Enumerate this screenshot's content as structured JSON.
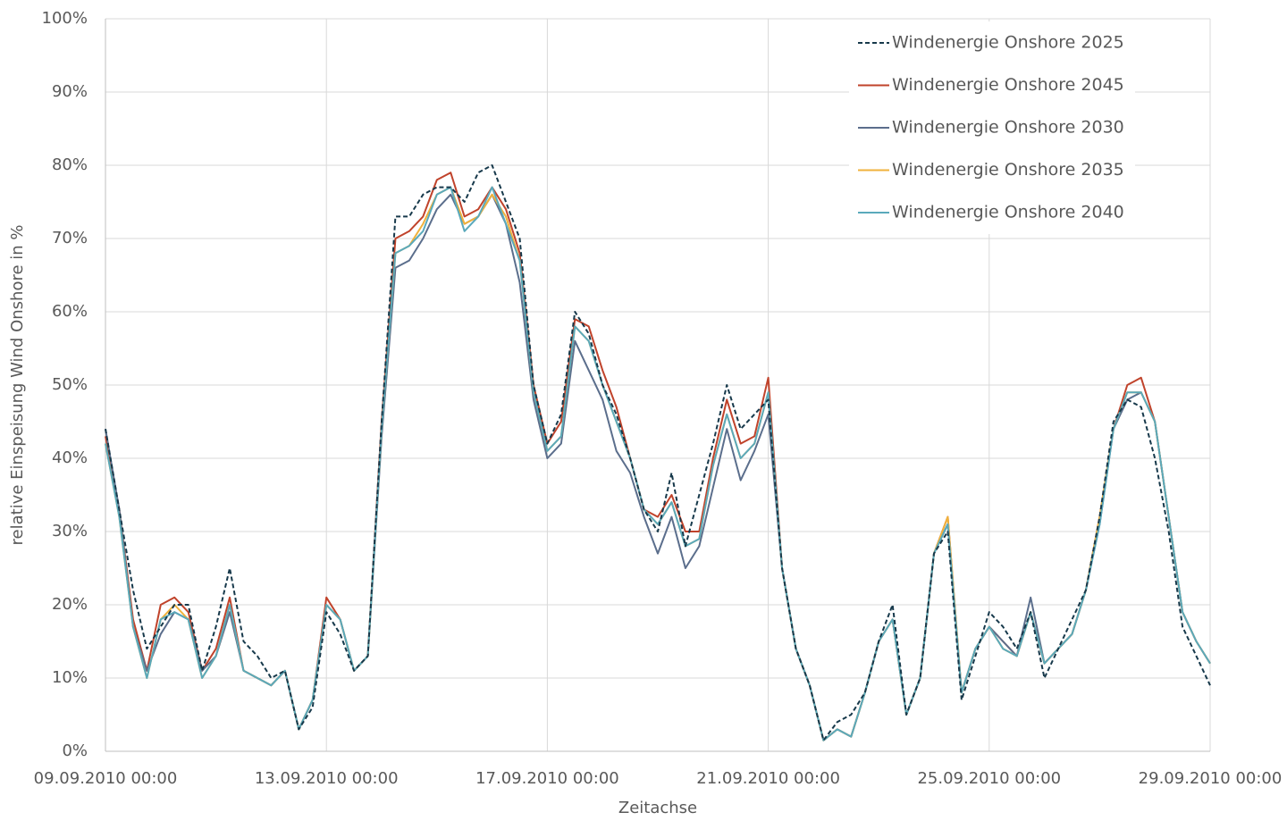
{
  "chart_data": {
    "type": "line",
    "x_label": "Zeitachse",
    "y_label": "relative Einspeisung Wind Onshore in %",
    "x": [
      "09.09.2010 00:00",
      "09.09.2010 06:00",
      "09.09.2010 12:00",
      "09.09.2010 18:00",
      "10.09.2010 00:00",
      "10.09.2010 06:00",
      "10.09.2010 12:00",
      "10.09.2010 18:00",
      "11.09.2010 00:00",
      "11.09.2010 06:00",
      "11.09.2010 12:00",
      "11.09.2010 18:00",
      "12.09.2010 00:00",
      "12.09.2010 06:00",
      "12.09.2010 12:00",
      "12.09.2010 18:00",
      "13.09.2010 00:00",
      "13.09.2010 06:00",
      "13.09.2010 12:00",
      "13.09.2010 18:00",
      "14.09.2010 00:00",
      "14.09.2010 06:00",
      "14.09.2010 12:00",
      "14.09.2010 18:00",
      "15.09.2010 00:00",
      "15.09.2010 06:00",
      "15.09.2010 12:00",
      "15.09.2010 18:00",
      "16.09.2010 00:00",
      "16.09.2010 06:00",
      "16.09.2010 12:00",
      "16.09.2010 18:00",
      "17.09.2010 00:00",
      "17.09.2010 06:00",
      "17.09.2010 12:00",
      "17.09.2010 18:00",
      "18.09.2010 00:00",
      "18.09.2010 06:00",
      "18.09.2010 12:00",
      "18.09.2010 18:00",
      "19.09.2010 00:00",
      "19.09.2010 06:00",
      "19.09.2010 12:00",
      "19.09.2010 18:00",
      "20.09.2010 00:00",
      "20.09.2010 06:00",
      "20.09.2010 12:00",
      "20.09.2010 18:00",
      "21.09.2010 00:00",
      "21.09.2010 06:00",
      "21.09.2010 12:00",
      "21.09.2010 18:00",
      "22.09.2010 00:00",
      "22.09.2010 06:00",
      "22.09.2010 12:00",
      "22.09.2010 18:00",
      "23.09.2010 00:00",
      "23.09.2010 06:00",
      "23.09.2010 12:00",
      "23.09.2010 18:00",
      "24.09.2010 00:00",
      "24.09.2010 06:00",
      "24.09.2010 12:00",
      "24.09.2010 18:00",
      "25.09.2010 00:00",
      "25.09.2010 06:00",
      "25.09.2010 12:00",
      "25.09.2010 18:00",
      "26.09.2010 00:00",
      "26.09.2010 06:00",
      "26.09.2010 12:00",
      "26.09.2010 18:00",
      "27.09.2010 00:00",
      "27.09.2010 06:00",
      "27.09.2010 12:00",
      "27.09.2010 18:00",
      "28.09.2010 00:00",
      "28.09.2010 06:00",
      "28.09.2010 12:00",
      "28.09.2010 18:00",
      "29.09.2010 00:00"
    ],
    "series": [
      {
        "name": "Windenergie Onshore 2025",
        "color": "#17394b",
        "linestyle": "dashed",
        "values": [
          44,
          33,
          22,
          14,
          17,
          20,
          20,
          11,
          17,
          25,
          15,
          13,
          10,
          11,
          3,
          6,
          19,
          16,
          11,
          13,
          45,
          73,
          73,
          76,
          77,
          77,
          75,
          79,
          80,
          75,
          70,
          50,
          42,
          46,
          60,
          57,
          50,
          46,
          40,
          33,
          30,
          38,
          28,
          35,
          42,
          50,
          44,
          46,
          48,
          25,
          14,
          9,
          1.5,
          4,
          5,
          8,
          15,
          20,
          5,
          10,
          27,
          30,
          7,
          13,
          19,
          17,
          14,
          19,
          10,
          14,
          18,
          22,
          32,
          45,
          48,
          47,
          40,
          30,
          17,
          13,
          9
        ]
      },
      {
        "name": "Windenergie Onshore 2045",
        "color": "#c0432b",
        "linestyle": "solid",
        "values": [
          43,
          33,
          18,
          11,
          20,
          21,
          19,
          11,
          14,
          21,
          11,
          10,
          9,
          11,
          3,
          7,
          21,
          18,
          11,
          13,
          45,
          70,
          71,
          73,
          78,
          79,
          73,
          74,
          77,
          74,
          68,
          50,
          42,
          45,
          59,
          58,
          52,
          47,
          40,
          33,
          32,
          35,
          30,
          30,
          40,
          48,
          42,
          43,
          51,
          25,
          14,
          9,
          1.5,
          3,
          2,
          8,
          15,
          18,
          5,
          10,
          27,
          32,
          8,
          14,
          17,
          15,
          13,
          19,
          12,
          14,
          16,
          22,
          32,
          44,
          50,
          51,
          45,
          32,
          19,
          15,
          12
        ]
      },
      {
        "name": "Windenergie Onshore 2030",
        "color": "#5b6e8c",
        "linestyle": "solid",
        "values": [
          44,
          33,
          17,
          11,
          16,
          19,
          18,
          11,
          13,
          19,
          11,
          10,
          9,
          11,
          3,
          7,
          20,
          18,
          11,
          13,
          43,
          66,
          67,
          70,
          74,
          76,
          72,
          73,
          76,
          72,
          64,
          48,
          40,
          42,
          56,
          52,
          48,
          41,
          38,
          32,
          27,
          32,
          25,
          28,
          36,
          44,
          37,
          41,
          46,
          25,
          14,
          9,
          1.5,
          3,
          2,
          8,
          15,
          18,
          5,
          10,
          27,
          31,
          8,
          14,
          17,
          15,
          13,
          21,
          12,
          14,
          16,
          22,
          31,
          44,
          48,
          49,
          45,
          32,
          19,
          15,
          12
        ]
      },
      {
        "name": "Windenergie Onshore 2035",
        "color": "#f0b23c",
        "linestyle": "solid",
        "values": [
          42,
          32,
          17,
          10,
          18,
          20,
          18,
          10,
          13,
          20,
          11,
          10,
          9,
          11,
          3,
          7,
          20,
          18,
          11,
          13,
          44,
          68,
          69,
          72,
          76,
          77,
          72,
          73,
          76,
          73,
          67,
          49,
          41,
          43,
          58,
          56,
          50,
          45,
          40,
          33,
          31,
          34,
          28,
          29,
          39,
          46,
          40,
          42,
          49,
          25,
          14,
          9,
          1.5,
          3,
          2,
          8,
          15,
          18,
          5,
          10,
          27,
          32,
          8,
          14,
          17,
          14,
          13,
          19,
          12,
          14,
          16,
          22,
          32,
          44,
          49,
          49,
          45,
          32,
          19,
          15,
          12
        ]
      },
      {
        "name": "Windenergie Onshore 2040",
        "color": "#5aa9bb",
        "linestyle": "solid",
        "values": [
          42,
          32,
          17,
          10,
          18,
          19,
          18,
          10,
          13,
          20,
          11,
          10,
          9,
          11,
          3,
          7,
          20,
          18,
          11,
          13,
          44,
          68,
          69,
          71,
          76,
          77,
          71,
          73,
          77,
          72,
          67,
          49,
          41,
          43,
          58,
          56,
          50,
          45,
          40,
          33,
          31,
          34,
          28,
          29,
          39,
          46,
          40,
          42,
          49,
          25,
          14,
          9,
          1.5,
          3,
          2,
          8,
          15,
          18,
          5,
          10,
          27,
          31,
          8,
          14,
          17,
          14,
          13,
          19,
          12,
          14,
          16,
          22,
          31,
          44,
          49,
          49,
          45,
          32,
          19,
          15,
          12
        ]
      }
    ],
    "xlim": [
      "09.09.2010 00:00",
      "29.09.2010 00:00"
    ],
    "xticks": [
      "09.09.2010 00:00",
      "13.09.2010 00:00",
      "17.09.2010 00:00",
      "21.09.2010 00:00",
      "25.09.2010 00:00",
      "29.09.2010 00:00"
    ],
    "ylim": [
      0,
      100
    ],
    "yticks": [
      {
        "value": 0,
        "label": "0%"
      },
      {
        "value": 10,
        "label": "10%"
      },
      {
        "value": 20,
        "label": "20%"
      },
      {
        "value": 30,
        "label": "30%"
      },
      {
        "value": 40,
        "label": "40%"
      },
      {
        "value": 50,
        "label": "50%"
      },
      {
        "value": 60,
        "label": "60%"
      },
      {
        "value": 70,
        "label": "70%"
      },
      {
        "value": 80,
        "label": "80%"
      },
      {
        "value": 90,
        "label": "90%"
      },
      {
        "value": 100,
        "label": "100%"
      }
    ],
    "grid": true,
    "legend": "upper right"
  }
}
